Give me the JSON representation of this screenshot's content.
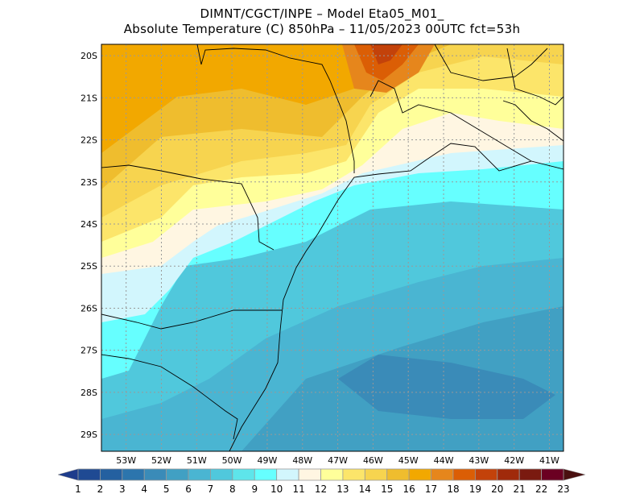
{
  "title": {
    "line1": "DIMNT/CGCT/INPE –  Model Eta05_M01_",
    "line2": "Absolute Temperature (C) 850hPa –  11/05/2023 00UTC fct=53h"
  },
  "map": {
    "lon_range": [
      -53.7,
      -40.6
    ],
    "lat_range": [
      -29.4,
      -19.73
    ],
    "lon_ticks": [
      "53W",
      "52W",
      "51W",
      "50W",
      "49W",
      "48W",
      "47W",
      "46W",
      "45W",
      "44W",
      "43W",
      "42W",
      "41W"
    ],
    "lat_ticks": [
      "20S",
      "21S",
      "22S",
      "23S",
      "24S",
      "25S",
      "26S",
      "27S",
      "28S",
      "29S"
    ],
    "lon_values": [
      -53,
      -52,
      -51,
      -50,
      -49,
      -48,
      -47,
      -46,
      -45,
      -44,
      -43,
      -42,
      -41
    ],
    "lat_values": [
      -20,
      -21,
      -22,
      -23,
      -24,
      -25,
      -26,
      -27,
      -28,
      -29
    ]
  },
  "colorbar": {
    "labels": [
      "1",
      "2",
      "3",
      "4",
      "5",
      "6",
      "7",
      "8",
      "9",
      "10",
      "11",
      "12",
      "13",
      "14",
      "15",
      "16",
      "17",
      "18",
      "19",
      "20",
      "21",
      "22",
      "23"
    ],
    "below_color": "#1e3c8c",
    "above_color": "#4a1010",
    "colors": [
      "#1f4a93",
      "#2460a0",
      "#2c75ad",
      "#3a8bb8",
      "#41a0c3",
      "#4ab5d2",
      "#50c8dc",
      "#5ee5ea",
      "#66ffff",
      "#d2f6fd",
      "#fff6e2",
      "#ffff9a",
      "#fce56a",
      "#f7d44f",
      "#efbd2e",
      "#f2a800",
      "#e6861c",
      "#db5e05",
      "#c3420a",
      "#a02a0b",
      "#7a1a10",
      "#6b0022"
    ]
  }
}
